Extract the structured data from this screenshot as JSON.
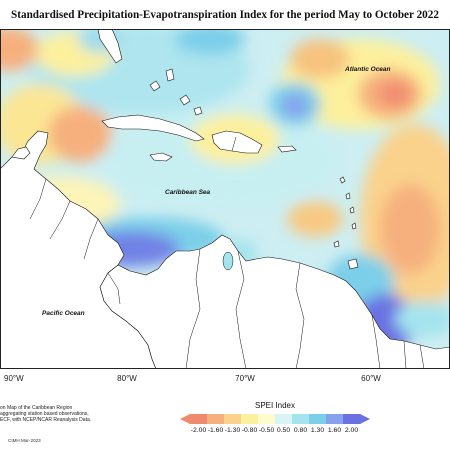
{
  "title": "Standardised Precipitation-Evapotranspiration Index for the period May to October 2022",
  "map_labels": {
    "atlantic": "Atlantic Ocean",
    "caribbean": "Caribbean Sea",
    "pacific": "Pacific Ocean"
  },
  "longitude_labels": [
    "90°W",
    "80°W",
    "70°W",
    "60°W"
  ],
  "note_lines": [
    "on Map of the Caribbean Region",
    "aggregating station based observations,",
    "ECF, with NCEP/NCAR Reanalysis Data."
  ],
  "credit": "CIMH Mar-2023",
  "legend": {
    "title": "SPEI Index",
    "ticks": [
      "-2.00",
      "-1.60",
      "-1.30",
      "-0.80",
      "-0.50",
      "0.50",
      "0.80",
      "1.30",
      "1.60",
      "2.00"
    ],
    "colors": [
      "#f08a6f",
      "#f6b07e",
      "#fad28c",
      "#fdf09c",
      "#fdfcca",
      "#d8f4f4",
      "#a4e4ee",
      "#7ccfe9",
      "#86a2ee",
      "#6a72e2"
    ]
  }
}
